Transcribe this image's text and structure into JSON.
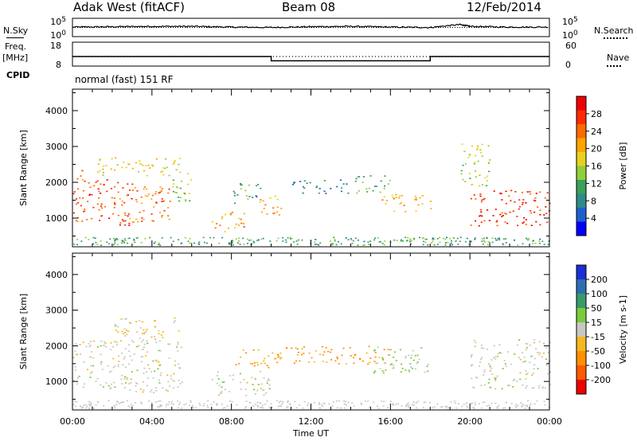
{
  "header": {
    "station": "Adak West (fitACF)",
    "beam": "Beam 08",
    "date": "12/Feb/2014"
  },
  "status_panel": {
    "left_labels": {
      "nsky": "N.Sky",
      "freq_line1": "Freq.",
      "freq_line2": "[MHz]",
      "cpid": "CPID"
    },
    "right_labels": {
      "nsearch": "N.Search",
      "nave": "Nave"
    },
    "noise_axis_left": [
      "10^5",
      "10^0"
    ],
    "noise_axis_right": [
      "10^5",
      "10^0"
    ],
    "freq_axis": [
      "18",
      "8"
    ],
    "nave_axis": [
      "60",
      "0"
    ],
    "cpid_text": "normal (fast) 151 RF"
  },
  "x_axis": {
    "label": "Time UT",
    "ticks": [
      "00:00",
      "04:00",
      "08:00",
      "12:00",
      "16:00",
      "20:00",
      "00:00"
    ]
  },
  "chart_data": [
    {
      "type": "line",
      "name": "noise",
      "x_range_hours": [
        0,
        24
      ],
      "series": [
        {
          "name": "N.Sky",
          "style": "solid",
          "x": [
            0,
            2,
            4,
            6,
            8,
            10,
            12,
            14,
            16,
            18,
            19.5,
            20,
            22,
            24
          ],
          "y_log10": [
            2.6,
            2.7,
            2.8,
            2.8,
            2.6,
            2.5,
            2.7,
            2.8,
            2.6,
            2.5,
            3.3,
            2.8,
            2.6,
            2.6
          ]
        },
        {
          "name": "N.Search",
          "style": "dotted",
          "x": [
            0,
            24
          ],
          "y_log10": [
            2.5,
            2.5
          ]
        }
      ]
    },
    {
      "type": "line",
      "name": "frequency",
      "series": [
        {
          "name": "Freq.",
          "style": "solid",
          "unit": "MHz",
          "x": [
            0,
            10,
            10,
            18,
            18,
            24
          ],
          "y": [
            12,
            12,
            10.2,
            10.2,
            12,
            12
          ]
        },
        {
          "name": "Nave",
          "style": "dotted",
          "x": [
            0,
            24
          ],
          "y": [
            12,
            12
          ]
        }
      ]
    },
    {
      "type": "heatmap",
      "name": "power",
      "ylabel": "Slant Range [km]",
      "ylim": [
        200,
        4600
      ],
      "y_ticks": [
        1000,
        2000,
        3000,
        4000
      ],
      "colorbar": {
        "label": "Power [dB]",
        "ticks": [
          4,
          8,
          12,
          16,
          20,
          24,
          28
        ],
        "range": [
          0,
          32
        ],
        "colors": [
          "#0000ff",
          "#1e5fd0",
          "#2e8a8a",
          "#3aa05a",
          "#8fcf3a",
          "#e8d020",
          "#ffa500",
          "#ff6a00",
          "#ff2a00",
          "#ee0000"
        ]
      },
      "regions": [
        {
          "t": [
            0.0,
            0.5
          ],
          "r": [
            800,
            2400
          ],
          "dB": 24
        },
        {
          "t": [
            0.5,
            3.0
          ],
          "r": [
            800,
            2100
          ],
          "dB": 26
        },
        {
          "t": [
            3.0,
            5.0
          ],
          "r": [
            900,
            2000
          ],
          "dB": 24
        },
        {
          "t": [
            5.0,
            6.0
          ],
          "r": [
            1300,
            2300
          ],
          "dB": 14
        },
        {
          "t": [
            1.0,
            5.5
          ],
          "r": [
            2200,
            2700
          ],
          "dB": 18
        },
        {
          "t": [
            7.0,
            8.7
          ],
          "r": [
            600,
            1200
          ],
          "dB": 22
        },
        {
          "t": [
            8.0,
            9.5
          ],
          "r": [
            1400,
            2000
          ],
          "dB": 10
        },
        {
          "t": [
            9.4,
            10.5
          ],
          "r": [
            1100,
            1800
          ],
          "dB": 20
        },
        {
          "t": [
            11.0,
            14.0
          ],
          "r": [
            1700,
            2100
          ],
          "dB": 8
        },
        {
          "t": [
            14.0,
            16.0
          ],
          "r": [
            1700,
            2200
          ],
          "dB": 12
        },
        {
          "t": [
            15.5,
            18.0
          ],
          "r": [
            1200,
            1700
          ],
          "dB": 20
        },
        {
          "t": [
            20.0,
            24.0
          ],
          "r": [
            800,
            1800
          ],
          "dB": 28
        },
        {
          "t": [
            19.5,
            21.0
          ],
          "r": [
            1900,
            3100
          ],
          "dB": 16
        }
      ]
    },
    {
      "type": "heatmap",
      "name": "velocity",
      "ylabel": "Slant Range [km]",
      "ylim": [
        200,
        4600
      ],
      "y_ticks": [
        1000,
        2000,
        3000,
        4000
      ],
      "colorbar": {
        "label": "Velocity [m s-1]",
        "ticks": [
          200,
          100,
          50,
          15,
          -15,
          -50,
          -100,
          -200
        ],
        "colors": [
          "#1a2fd4",
          "#2c6fb0",
          "#3a9a6a",
          "#78cc3c",
          "#c8c8c0",
          "#f5b820",
          "#ff9000",
          "#ff5a00",
          "#ee0000"
        ]
      },
      "regions": [
        {
          "t": [
            0.0,
            5.5
          ],
          "r": [
            700,
            2200
          ],
          "v": 0
        },
        {
          "t": [
            2.0,
            5.5
          ],
          "r": [
            2200,
            2800
          ],
          "v": -20
        },
        {
          "t": [
            7.0,
            10.0
          ],
          "r": [
            600,
            1300
          ],
          "v": 0
        },
        {
          "t": [
            8.0,
            10.5
          ],
          "r": [
            1400,
            1900
          ],
          "v": -40
        },
        {
          "t": [
            10.0,
            16.0
          ],
          "r": [
            1500,
            2000
          ],
          "v": -60
        },
        {
          "t": [
            15.0,
            18.0
          ],
          "r": [
            1200,
            2000
          ],
          "v": 20
        },
        {
          "t": [
            20.0,
            24.0
          ],
          "r": [
            800,
            2200
          ],
          "v": 0
        }
      ]
    }
  ]
}
